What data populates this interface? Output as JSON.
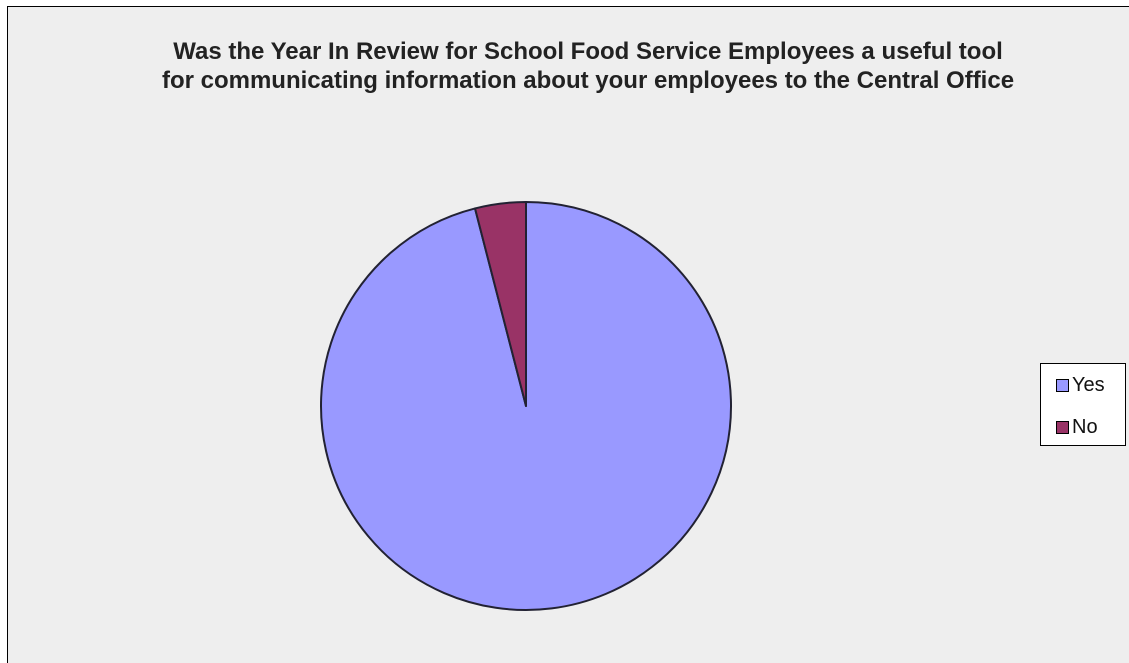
{
  "chart_data": {
    "type": "pie",
    "title_lines": [
      "Was the Year In Review for School Food Service Employees a useful tool",
      "for communicating information about your employees to the Central Office"
    ],
    "categories": [
      "Yes",
      "No"
    ],
    "values": [
      96,
      4
    ],
    "colors": [
      "#9999ff",
      "#993366"
    ],
    "outline_color": "#222233",
    "legend": {
      "placement": "right",
      "items": [
        {
          "label": "Yes",
          "color": "#9999ff"
        },
        {
          "label": "No",
          "color": "#993366"
        }
      ]
    }
  }
}
